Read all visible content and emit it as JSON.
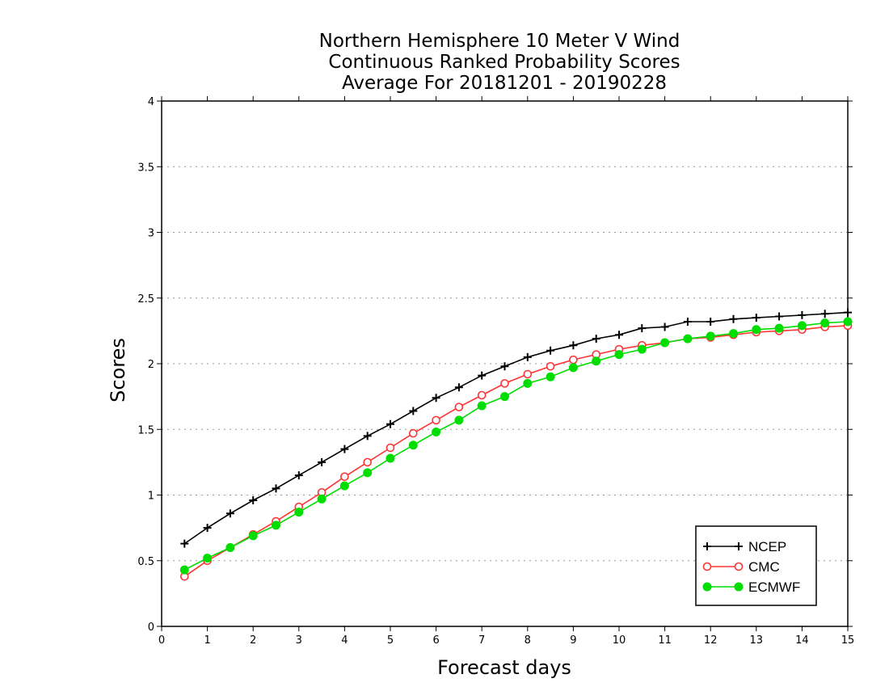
{
  "chart_data": {
    "type": "line",
    "title": [
      "Northern Hemisphere 10 Meter V Wind",
      "Continuous Ranked Probability Scores",
      "Average For 20181201 - 20190228"
    ],
    "xlabel": "Forecast days",
    "ylabel": "Scores",
    "xlim": [
      0,
      15
    ],
    "ylim": [
      0,
      4
    ],
    "x_ticks": [
      "0",
      "1",
      "2",
      "3",
      "4",
      "5",
      "6",
      "7",
      "8",
      "9",
      "10",
      "11",
      "12",
      "13",
      "14",
      "15"
    ],
    "y_ticks": [
      "0",
      "0.5",
      "1",
      "1.5",
      "2",
      "2.5",
      "3",
      "3.5",
      "4"
    ],
    "grid": "horizontal-dotted",
    "legend_position": "bottom-right",
    "x": [
      0.5,
      1,
      1.5,
      2,
      2.5,
      3,
      3.5,
      4,
      4.5,
      5,
      5.5,
      6,
      6.5,
      7,
      7.5,
      8,
      8.5,
      9,
      9.5,
      10,
      10.5,
      11,
      11.5,
      12,
      12.5,
      13,
      13.5,
      14,
      14.5,
      15
    ],
    "series": [
      {
        "name": "NCEP",
        "color": "#000000",
        "marker": "plus",
        "values": [
          0.63,
          0.75,
          0.86,
          0.96,
          1.05,
          1.15,
          1.25,
          1.35,
          1.45,
          1.54,
          1.64,
          1.74,
          1.82,
          1.91,
          1.98,
          2.05,
          2.1,
          2.14,
          2.19,
          2.22,
          2.27,
          2.28,
          2.32,
          2.32,
          2.34,
          2.35,
          2.36,
          2.37,
          2.38,
          2.39
        ]
      },
      {
        "name": "CMC",
        "color": "#ff3333",
        "marker": "open-circle",
        "values": [
          0.38,
          0.5,
          0.6,
          0.7,
          0.8,
          0.91,
          1.02,
          1.14,
          1.25,
          1.36,
          1.47,
          1.57,
          1.67,
          1.76,
          1.85,
          1.92,
          1.98,
          2.03,
          2.07,
          2.11,
          2.14,
          2.16,
          2.19,
          2.2,
          2.22,
          2.24,
          2.25,
          2.26,
          2.28,
          2.29
        ]
      },
      {
        "name": "ECMWF",
        "color": "#00dd00",
        "marker": "filled-circle",
        "values": [
          0.43,
          0.52,
          0.6,
          0.69,
          0.77,
          0.87,
          0.97,
          1.07,
          1.17,
          1.28,
          1.38,
          1.48,
          1.57,
          1.68,
          1.75,
          1.85,
          1.9,
          1.97,
          2.02,
          2.07,
          2.11,
          2.16,
          2.19,
          2.21,
          2.23,
          2.26,
          2.27,
          2.29,
          2.31,
          2.32
        ]
      }
    ]
  }
}
